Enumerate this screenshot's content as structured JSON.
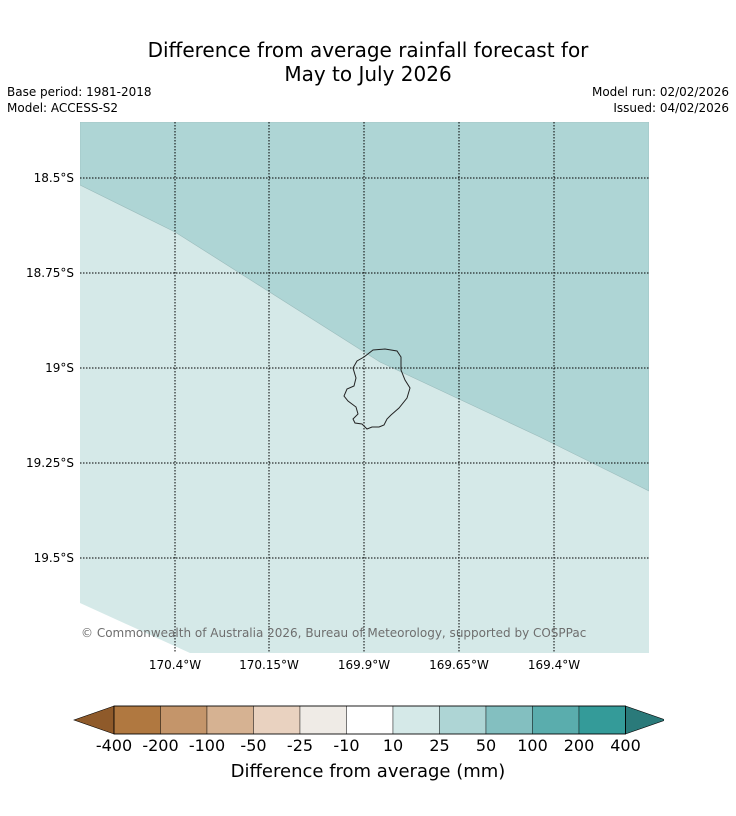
{
  "title": {
    "line1": "Difference from average rainfall forecast for",
    "line2": "May to July 2026"
  },
  "meta": {
    "base_period": "Base period: 1981-2018",
    "model": "Model: ACCESS-S2",
    "model_run": "Model run: 02/02/2026",
    "issued": "Issued: 04/02/2026"
  },
  "map": {
    "lat_labels": [
      "18.5°S",
      "18.75°S",
      "19°S",
      "19.25°S",
      "19.5°S"
    ],
    "lon_labels": [
      "170.4°W",
      "170.15°W",
      "169.9°W",
      "169.65°W",
      "169.4°W"
    ],
    "copyright": "© Commonwealth of Australia 2026, Bureau of Meteorology, supported by COSPPac",
    "region_colors": {
      "upper": "#aed5d5",
      "lower": "#d5e9e8",
      "island_outline": "#222222",
      "grid": "#000000"
    }
  },
  "colorbar": {
    "label": "Difference from average (mm)",
    "ticks": [
      "-400",
      "-200",
      "-100",
      "-50",
      "-25",
      "-10",
      "10",
      "25",
      "50",
      "100",
      "200",
      "400"
    ],
    "under_color": "#8f5a2a",
    "over_color": "#2a7a7a",
    "bins": [
      "#b07840",
      "#c4956a",
      "#d6b292",
      "#e9d2c0",
      "#efebe6",
      "#ffffff",
      "#d5e9e8",
      "#aed5d5",
      "#83bfc0",
      "#5aadad",
      "#349b99"
    ]
  }
}
